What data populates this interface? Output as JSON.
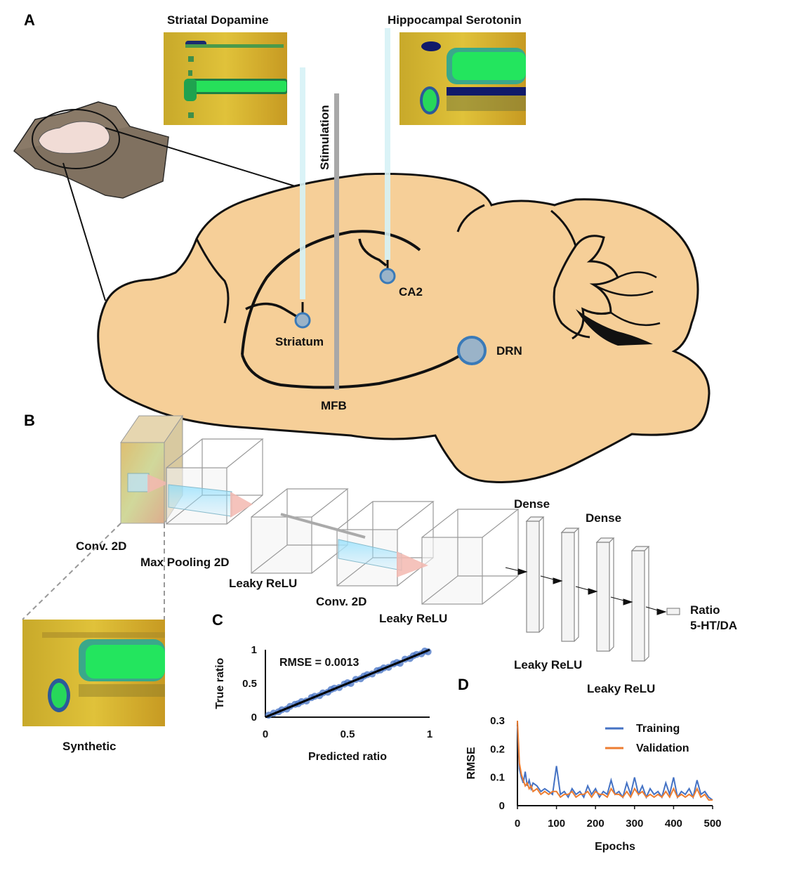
{
  "panels": {
    "a": "A",
    "b": "B",
    "c": "C",
    "d": "D"
  },
  "panel_a": {
    "inset_left_title": "Striatal Dopamine",
    "inset_right_title": "Hippocampal Serotonin",
    "stimulation_label": "Stimulation",
    "regions": {
      "striatum": "Striatum",
      "ca2": "CA2",
      "drn": "DRN",
      "mfb": "MFB"
    }
  },
  "panel_b": {
    "layers": {
      "conv1": "Conv. 2D",
      "maxpool": "Max Pooling 2D",
      "leaky1": "Leaky ReLU",
      "conv2": "Conv. 2D",
      "leaky2": "Leaky ReLU",
      "dense1": "Dense",
      "dense2": "Dense",
      "leaky3": "Leaky ReLU",
      "leaky4": "Leaky ReLU"
    },
    "output_line1": "Ratio",
    "output_line2": "5-HT/DA",
    "synthetic_label": "Synthetic"
  },
  "chart_data": [
    {
      "type": "scatter",
      "annotation": "RMSE = 0.0013",
      "xlabel": "Predicted ratio",
      "ylabel": "True ratio",
      "xlim": [
        0,
        1
      ],
      "ylim": [
        0,
        1
      ],
      "xticks": [
        "0",
        "0.5",
        "1"
      ],
      "yticks": [
        "0",
        "0.5",
        "1"
      ],
      "fit_line": {
        "x": [
          0,
          1
        ],
        "y": [
          0,
          1
        ]
      },
      "points": [
        [
          0.02,
          0.03
        ],
        [
          0.05,
          0.06
        ],
        [
          0.08,
          0.08
        ],
        [
          0.1,
          0.11
        ],
        [
          0.13,
          0.12
        ],
        [
          0.15,
          0.16
        ],
        [
          0.18,
          0.19
        ],
        [
          0.2,
          0.2
        ],
        [
          0.22,
          0.23
        ],
        [
          0.25,
          0.24
        ],
        [
          0.28,
          0.29
        ],
        [
          0.3,
          0.31
        ],
        [
          0.33,
          0.32
        ],
        [
          0.35,
          0.36
        ],
        [
          0.38,
          0.37
        ],
        [
          0.4,
          0.41
        ],
        [
          0.42,
          0.43
        ],
        [
          0.45,
          0.44
        ],
        [
          0.48,
          0.49
        ],
        [
          0.5,
          0.51
        ],
        [
          0.52,
          0.5
        ],
        [
          0.55,
          0.56
        ],
        [
          0.58,
          0.57
        ],
        [
          0.6,
          0.61
        ],
        [
          0.62,
          0.63
        ],
        [
          0.65,
          0.64
        ],
        [
          0.68,
          0.69
        ],
        [
          0.7,
          0.7
        ],
        [
          0.72,
          0.73
        ],
        [
          0.75,
          0.74
        ],
        [
          0.78,
          0.79
        ],
        [
          0.8,
          0.81
        ],
        [
          0.82,
          0.8
        ],
        [
          0.85,
          0.86
        ],
        [
          0.88,
          0.87
        ],
        [
          0.9,
          0.91
        ],
        [
          0.92,
          0.93
        ],
        [
          0.95,
          0.94
        ],
        [
          0.97,
          0.98
        ],
        [
          0.99,
          0.97
        ]
      ]
    },
    {
      "type": "line",
      "xlabel": "Epochs",
      "ylabel": "RMSE",
      "xlim": [
        0,
        500
      ],
      "ylim": [
        0,
        0.3
      ],
      "xticks": [
        0,
        100,
        200,
        300,
        400,
        500
      ],
      "yticks": [
        0,
        0.1,
        0.2,
        0.3
      ],
      "legend_position": "top-right",
      "series": [
        {
          "name": "Training",
          "color": "#4472C4",
          "x": [
            0,
            5,
            10,
            15,
            20,
            25,
            30,
            35,
            40,
            50,
            60,
            70,
            80,
            90,
            100,
            110,
            120,
            130,
            140,
            150,
            160,
            170,
            180,
            190,
            200,
            210,
            220,
            230,
            240,
            250,
            260,
            270,
            280,
            290,
            300,
            310,
            320,
            330,
            340,
            350,
            360,
            370,
            380,
            390,
            400,
            410,
            420,
            430,
            440,
            450,
            460,
            470,
            480,
            490,
            500
          ],
          "y": [
            0.28,
            0.13,
            0.1,
            0.08,
            0.12,
            0.07,
            0.09,
            0.06,
            0.08,
            0.07,
            0.05,
            0.06,
            0.05,
            0.04,
            0.14,
            0.04,
            0.05,
            0.03,
            0.06,
            0.04,
            0.05,
            0.03,
            0.07,
            0.04,
            0.06,
            0.03,
            0.05,
            0.04,
            0.09,
            0.04,
            0.05,
            0.03,
            0.08,
            0.04,
            0.1,
            0.04,
            0.07,
            0.03,
            0.06,
            0.04,
            0.05,
            0.03,
            0.08,
            0.04,
            0.1,
            0.03,
            0.05,
            0.04,
            0.06,
            0.03,
            0.09,
            0.04,
            0.05,
            0.03,
            0.02
          ]
        },
        {
          "name": "Validation",
          "color": "#ED7D31",
          "x": [
            0,
            5,
            10,
            15,
            20,
            25,
            30,
            35,
            40,
            50,
            60,
            70,
            80,
            90,
            100,
            110,
            120,
            130,
            140,
            150,
            160,
            170,
            180,
            190,
            200,
            210,
            220,
            230,
            240,
            250,
            260,
            270,
            280,
            290,
            300,
            310,
            320,
            330,
            340,
            350,
            360,
            370,
            380,
            390,
            400,
            410,
            420,
            430,
            440,
            450,
            460,
            470,
            480,
            490,
            500
          ],
          "y": [
            0.3,
            0.15,
            0.11,
            0.09,
            0.07,
            0.08,
            0.06,
            0.07,
            0.05,
            0.06,
            0.04,
            0.05,
            0.04,
            0.05,
            0.05,
            0.03,
            0.04,
            0.04,
            0.05,
            0.03,
            0.04,
            0.04,
            0.05,
            0.03,
            0.05,
            0.04,
            0.04,
            0.03,
            0.06,
            0.04,
            0.04,
            0.03,
            0.05,
            0.03,
            0.06,
            0.04,
            0.05,
            0.03,
            0.04,
            0.03,
            0.04,
            0.03,
            0.05,
            0.03,
            0.06,
            0.03,
            0.04,
            0.03,
            0.04,
            0.03,
            0.06,
            0.03,
            0.04,
            0.02,
            0.02
          ]
        }
      ]
    }
  ]
}
